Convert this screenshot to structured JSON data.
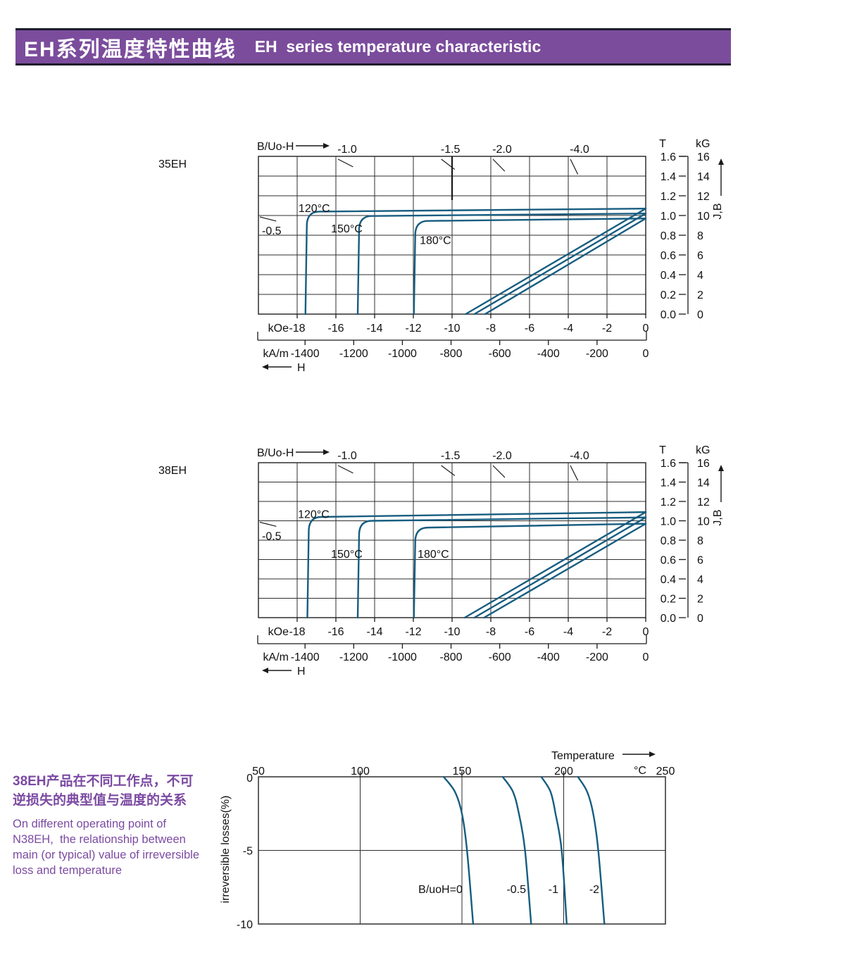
{
  "header": {
    "title_zh": "EH系列温度特性曲线",
    "title_en": "EH  series temperature characteristic",
    "bg_color": "#7b4c9c",
    "edge_color": "#1d1d2b",
    "text_color": "#ffffff"
  },
  "side_note": {
    "zh_line1": "38EH产品在不同工作点，不可",
    "zh_line2": "逆损失的典型值与温度的关系",
    "en_line1": "On different operating point of",
    "en_line2": "N38EH,  the relationship between",
    "en_line3": "main (or typical) value of irreversible",
    "en_line4": "loss and temperature",
    "color": "#7b4aa2"
  },
  "colors": {
    "curve": "#175d80",
    "grid": "#2e2e2e",
    "header_purple": "#7b4c9c",
    "note_purple": "#7b4aa2"
  },
  "chart_data": [
    {
      "type": "line",
      "id": "bh-35eh",
      "title": "35EH",
      "corner_label": "B/Uo-H",
      "x_range_kOe": [
        -20,
        0
      ],
      "y_range_T": [
        0,
        1.6
      ],
      "grid": true,
      "has_extra_segment": true,
      "x_axis": {
        "unit1": "kOe",
        "ticks_kOe": [
          -18,
          -16,
          -14,
          -12,
          -10,
          -8,
          -6,
          -4,
          -2,
          0
        ],
        "unit2": "kA/m",
        "ticks_kAm": [
          -1400,
          -1200,
          -1000,
          -800,
          -600,
          -400,
          -200,
          0
        ],
        "arrow_label": "H"
      },
      "y_axis": {
        "unit_T": "T",
        "ticks_T": [
          "1.6",
          "1.4",
          "1.2",
          "1.0",
          "0.8",
          "0.6",
          "0.4",
          "0.2",
          "0.0"
        ],
        "unit_kG": "kG",
        "ticks_kG": [
          16,
          14,
          12,
          10,
          8,
          6,
          4,
          2,
          0
        ],
        "jb_label": "J,B"
      },
      "load_lines": [
        {
          "label": "-0.5",
          "pc": 0.5
        },
        {
          "label": "-1.0",
          "pc": 1.0
        },
        {
          "label": "-1.5",
          "pc": 1.5
        },
        {
          "label": "-2.0",
          "pc": 2.0
        },
        {
          "label": "-4.0",
          "pc": 4.0
        }
      ],
      "series": [
        {
          "name": "120°C",
          "Hcj_kOe": -17.5,
          "J_flat_T": 1.04,
          "Br_T": 1.07,
          "HcB_kOe": -9.3,
          "label_at": [
            -17.93,
            1.035
          ]
        },
        {
          "name": "150°C",
          "Hcj_kOe": -14.8,
          "J_flat_T": 0.995,
          "Br_T": 1.02,
          "HcB_kOe": -8.85,
          "label_at": [
            -16.25,
            0.83
          ]
        },
        {
          "name": "180°C",
          "Hcj_kOe": -11.9,
          "J_flat_T": 0.945,
          "Br_T": 0.97,
          "HcB_kOe": -8.3,
          "label_at": [
            -11.67,
            0.71
          ]
        }
      ]
    },
    {
      "type": "line",
      "id": "bh-38eh",
      "title": "38EH",
      "corner_label": "B/Uo-H",
      "x_range_kOe": [
        -20,
        0
      ],
      "y_range_T": [
        0,
        1.6
      ],
      "grid": true,
      "has_extra_segment": false,
      "x_axis": {
        "unit1": "kOe",
        "ticks_kOe": [
          -18,
          -16,
          -14,
          -12,
          -10,
          -8,
          -6,
          -4,
          -2,
          0
        ],
        "unit2": "kA/m",
        "ticks_kAm": [
          -1400,
          -1200,
          -1000,
          -800,
          -600,
          -400,
          -200,
          0
        ],
        "arrow_label": "H"
      },
      "y_axis": {
        "unit_T": "T",
        "ticks_T": [
          "1.6",
          "1.4",
          "1.2",
          "1.0",
          "0.8",
          "0.6",
          "0.4",
          "0.2",
          "0.0"
        ],
        "unit_kG": "kG",
        "ticks_kG": [
          16,
          14,
          12,
          10,
          8,
          6,
          4,
          2,
          0
        ],
        "jb_label": "J,B"
      },
      "load_lines": [
        {
          "label": "-0.5",
          "pc": 0.5
        },
        {
          "label": "-1.0",
          "pc": 1.0
        },
        {
          "label": "-1.5",
          "pc": 1.5
        },
        {
          "label": "-2.0",
          "pc": 2.0
        },
        {
          "label": "-4.0",
          "pc": 4.0
        }
      ],
      "series": [
        {
          "name": "120°C",
          "Hcj_kOe": -17.4,
          "J_flat_T": 1.04,
          "Br_T": 1.09,
          "HcB_kOe": -9.35,
          "label_at": [
            -17.96,
            1.03
          ]
        },
        {
          "name": "150°C",
          "Hcj_kOe": -14.8,
          "J_flat_T": 1.0,
          "Br_T": 1.035,
          "HcB_kOe": -8.85,
          "label_at": [
            -16.25,
            0.62
          ]
        },
        {
          "name": "180°C",
          "Hcj_kOe": -11.9,
          "J_flat_T": 0.93,
          "Br_T": 0.97,
          "HcB_kOe": -8.35,
          "label_at": [
            -11.78,
            0.62
          ]
        }
      ]
    },
    {
      "type": "line",
      "id": "irreversible-loss",
      "title": "",
      "xlabel": "Temperature",
      "x_unit": "°C",
      "ylabel": "irreversible  losses(%)",
      "x_range": [
        50,
        250
      ],
      "y_range": [
        -10,
        0
      ],
      "x_ticks": [
        50,
        100,
        150,
        200,
        250
      ],
      "x_grid": [
        100,
        150,
        200
      ],
      "y_ticks": [
        "0",
        "-5",
        "-10"
      ],
      "y_tick_values": [
        0,
        -5,
        -10
      ],
      "series": [
        {
          "name": "B/uoH=0",
          "points": [
            [
              141,
              0
            ],
            [
              146.5,
              -1
            ],
            [
              150,
              -2.5
            ],
            [
              152.5,
              -5
            ],
            [
              155.5,
              -10
            ]
          ],
          "label_at": [
            150.3,
            -7.9
          ]
        },
        {
          "name": "-0.5",
          "points": [
            [
              170,
              0
            ],
            [
              175,
              -1
            ],
            [
              178,
              -2.5
            ],
            [
              181,
              -5
            ],
            [
              184,
              -10
            ]
          ],
          "label_at": [
            181.5,
            -7.9
          ]
        },
        {
          "name": "-1",
          "points": [
            [
              189,
              0
            ],
            [
              193.5,
              -1
            ],
            [
              196,
              -2.5
            ],
            [
              199,
              -5
            ],
            [
              201.5,
              -10
            ]
          ],
          "label_at": [
            197.4,
            -7.9
          ]
        },
        {
          "name": "-2",
          "points": [
            [
              207,
              0
            ],
            [
              211.5,
              -1
            ],
            [
              214.5,
              -2.5
            ],
            [
              217,
              -5
            ],
            [
              220,
              -10
            ]
          ],
          "label_at": [
            217.5,
            -7.9
          ]
        }
      ]
    }
  ]
}
